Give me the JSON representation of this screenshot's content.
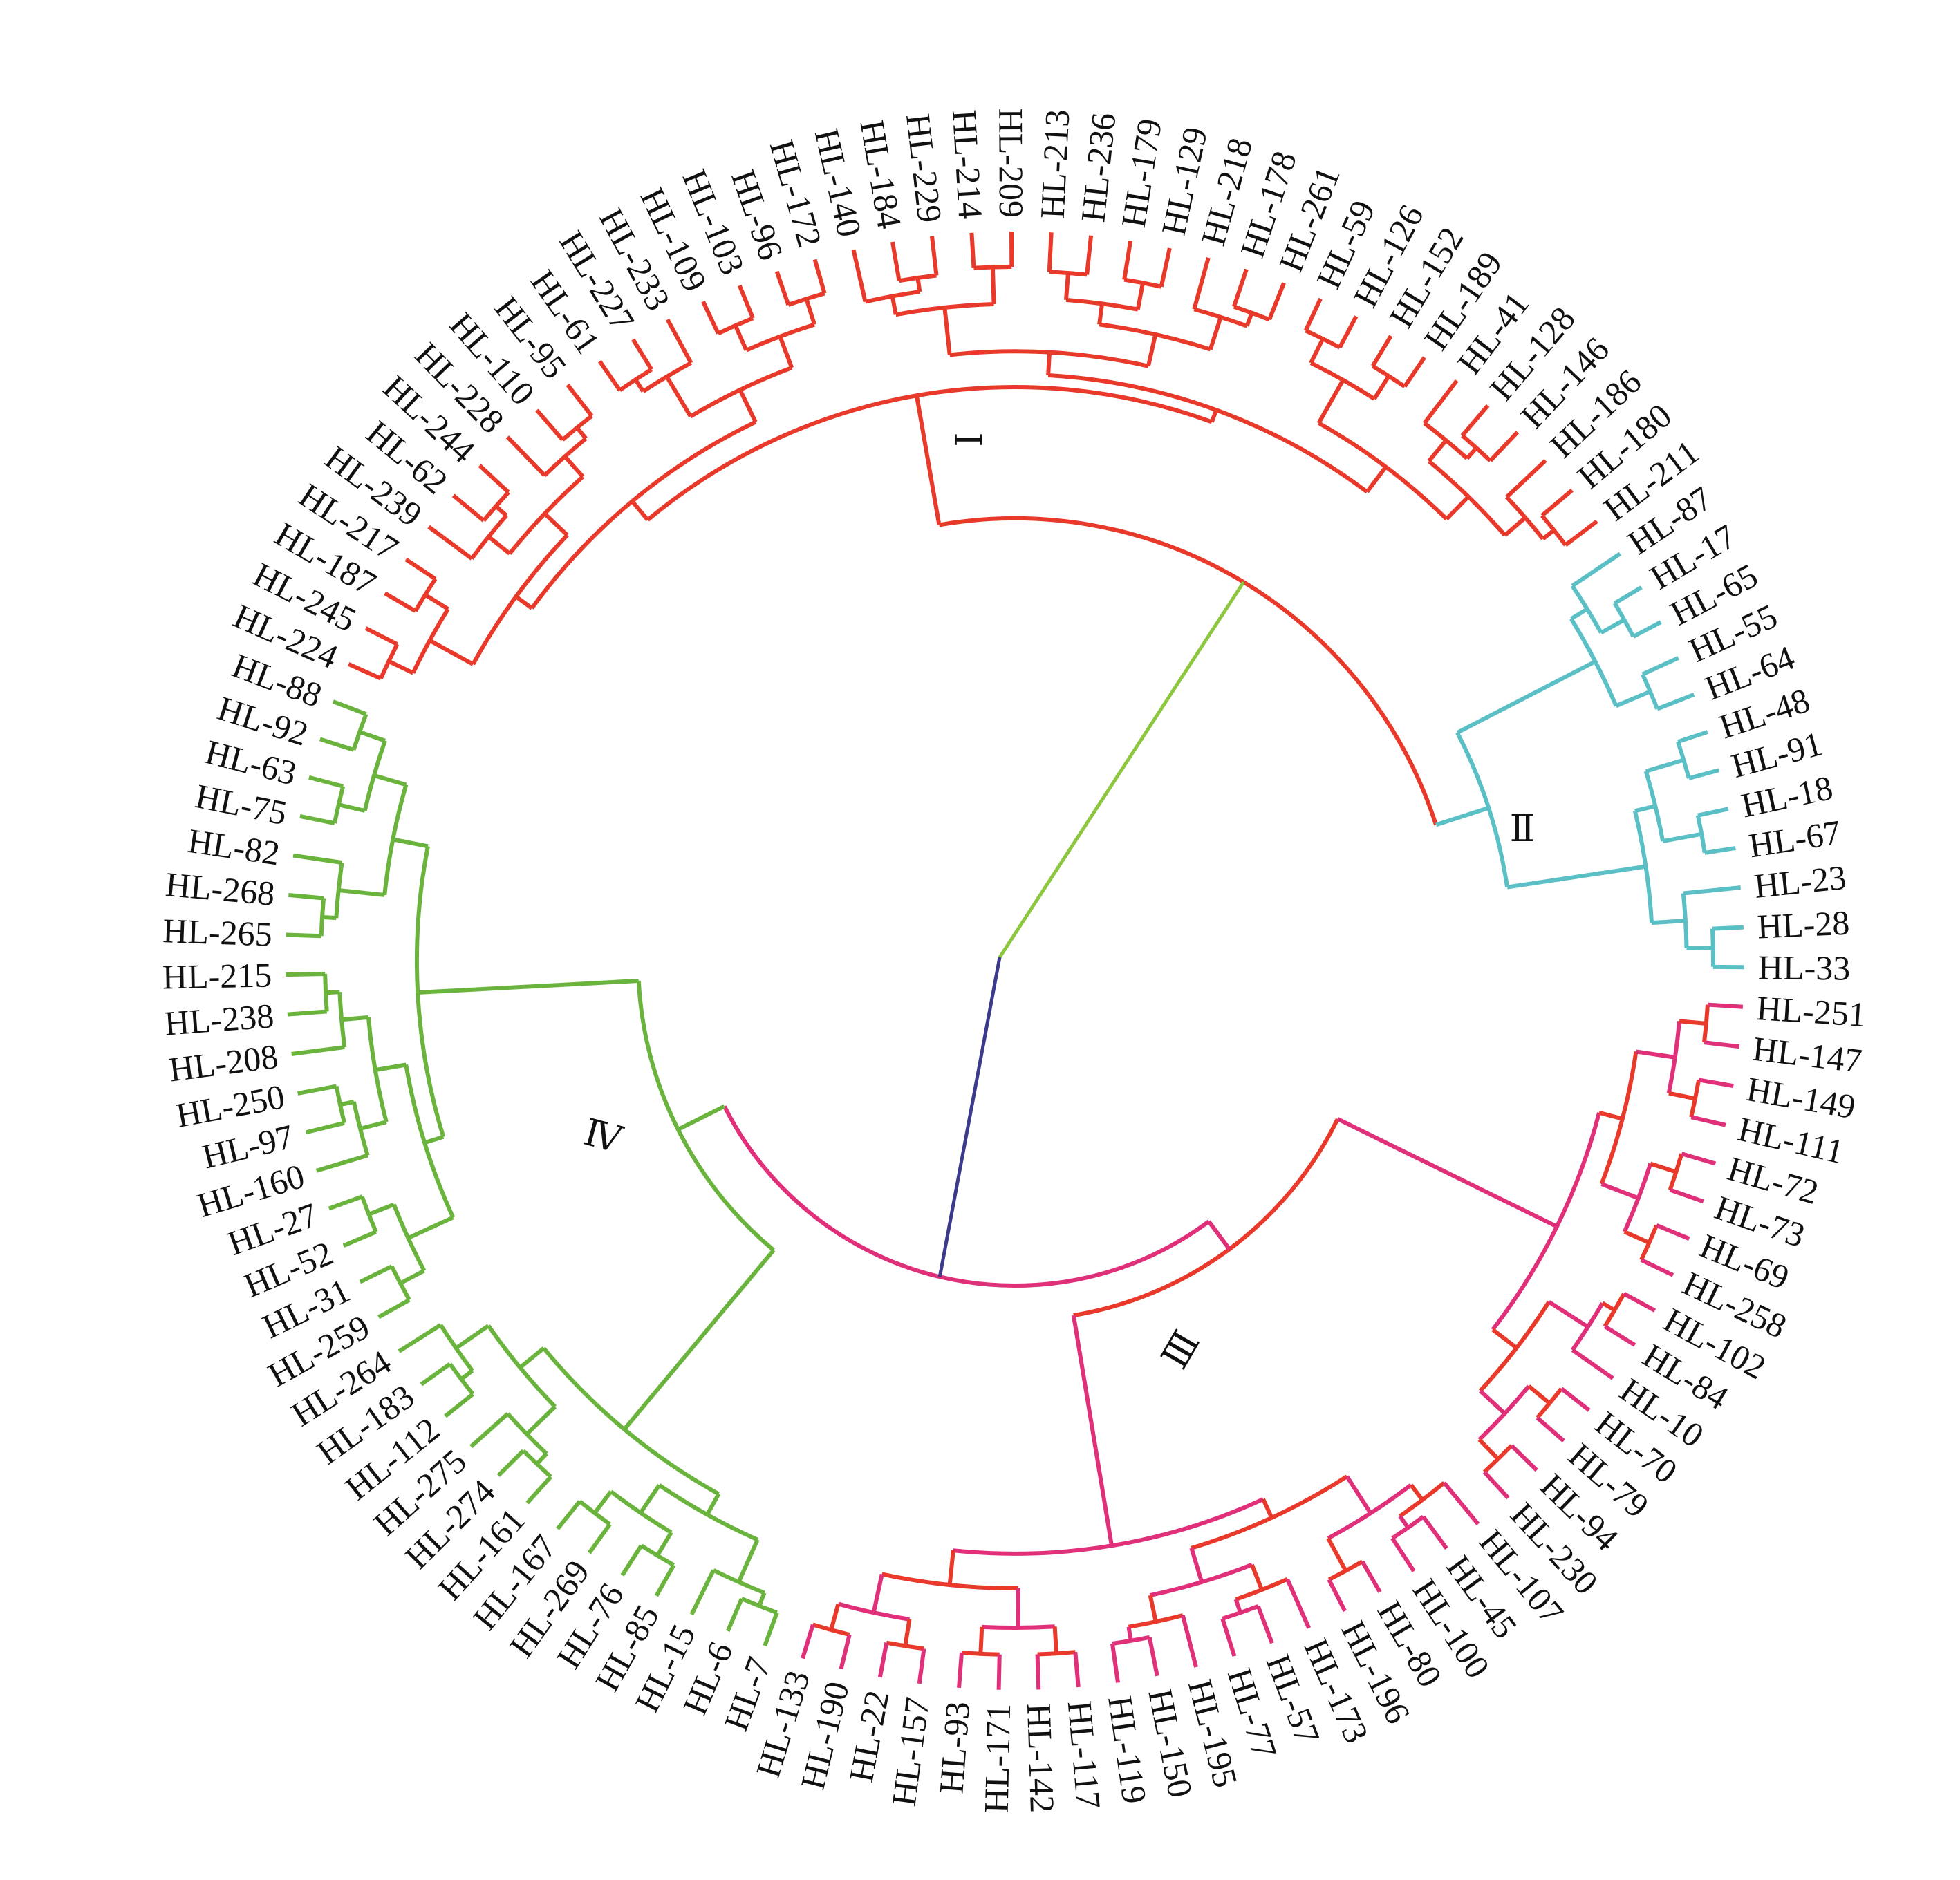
{
  "chart_data": {
    "type": "dendrogram",
    "layout": "circular",
    "root_colors": {
      "to_I_II": "#8dc63f",
      "to_III_IV": "#3b3a8c"
    },
    "clusters": [
      {
        "name": "Ⅰ",
        "color": "#e8392a",
        "alt_color": "#e8392a",
        "leaves": [
          "HL-224",
          "HL-245",
          "HL-187",
          "HL-217",
          "HL-239",
          "HL-62",
          "HL-244",
          "HL-228",
          "HL-110",
          "HL-95",
          "HL-61",
          "HL-227",
          "HL-233",
          "HL-109",
          "HL-103",
          "HL-96",
          "HL-172",
          "HL-140",
          "HL-184",
          "HL-229",
          "HL-214",
          "HL-209",
          "HL-213",
          "HL-236",
          "HL-179",
          "HL-129",
          "HL-218",
          "HL-178",
          "HL-261",
          "HL-59",
          "HL-126",
          "HL-152",
          "HL-189",
          "HL-41",
          "HL-128",
          "HL-146",
          "HL-186",
          "HL-180",
          "HL-211"
        ]
      },
      {
        "name": "Ⅱ",
        "color": "#5bbfc6",
        "alt_color": "#5bbfc6",
        "leaves": [
          "HL-87",
          "HL-17",
          "HL-65",
          "HL-55",
          "HL-64",
          "HL-48",
          "HL-91",
          "HL-18",
          "HL-67",
          "HL-23",
          "HL-28",
          "HL-33"
        ]
      },
      {
        "name": "Ⅲ",
        "color": "#e0307a",
        "alt_color": "#e8392a",
        "leaves": [
          "HL-251",
          "HL-147",
          "HL-149",
          "HL-111",
          "HL-72",
          "HL-73",
          "HL-69",
          "HL-258",
          "HL-102",
          "HL-84",
          "HL-10",
          "HL-70",
          "HL-79",
          "HL-94",
          "HL-230",
          "HL-107",
          "HL-45",
          "HL-100",
          "HL-80",
          "HL-196",
          "HL-173",
          "HL-57",
          "HL-77",
          "HL-195",
          "HL-150",
          "HL-119",
          "HL-117",
          "HL-142",
          "HL-171",
          "HL-93",
          "HL-157",
          "HL-22",
          "HL-190",
          "HL-133"
        ]
      },
      {
        "name": "Ⅳ",
        "color": "#6ab43e",
        "alt_color": "#6ab43e",
        "leaves": [
          "HL-7",
          "HL-6",
          "HL-15",
          "HL-85",
          "HL-76",
          "HL-269",
          "HL-167",
          "HL-161",
          "HL-274",
          "HL-275",
          "HL-112",
          "HL-183",
          "HL-264",
          "HL-259",
          "HL-31",
          "HL-52",
          "HL-27",
          "HL-160",
          "HL-97",
          "HL-250",
          "HL-208",
          "HL-238",
          "HL-215",
          "HL-265",
          "HL-268",
          "HL-82",
          "HL-75",
          "HL-63",
          "HL-92",
          "HL-88"
        ]
      }
    ]
  }
}
